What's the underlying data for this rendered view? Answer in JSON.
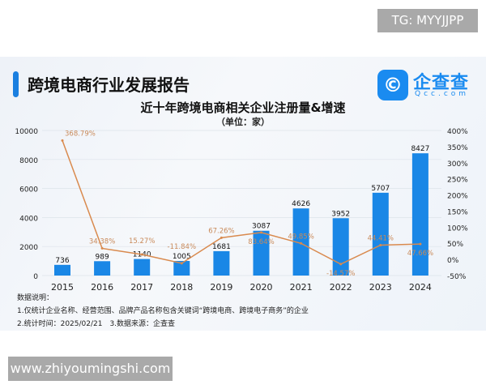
{
  "header": {
    "title": "跨境电商行业发展报告",
    "logo_glyph": "©",
    "logo_text": "企查查",
    "logo_sub": "Qcc.com"
  },
  "chart_data": {
    "type": "bar+line",
    "title": "近十年跨境电商相关企业注册量&增速",
    "subtitle": "（单位：家）",
    "categories": [
      "2015",
      "2016",
      "2017",
      "2018",
      "2019",
      "2020",
      "2021",
      "2022",
      "2023",
      "2024"
    ],
    "series": [
      {
        "name": "注册量",
        "type": "bar",
        "axis": "left",
        "color": "#1a87e6",
        "values": [
          736,
          989,
          1140,
          1005,
          1681,
          3087,
          4626,
          3952,
          5707,
          8427
        ]
      },
      {
        "name": "增速",
        "type": "line",
        "axis": "right",
        "color": "#d98a4e",
        "values": [
          368.79,
          34.38,
          15.27,
          -11.84,
          67.26,
          83.64,
          49.85,
          -14.57,
          44.41,
          47.66
        ],
        "labels": [
          "368.79%",
          "34.38%",
          "15.27%",
          "-11.84%",
          "67.26%",
          "83.64%",
          "49.85%",
          "-14.57%",
          "44.41%",
          "47.66%"
        ]
      }
    ],
    "y_left": {
      "range": [
        0,
        10000
      ],
      "ticks": [
        "0",
        "2000",
        "4000",
        "6000",
        "8000",
        "10000"
      ]
    },
    "y_right": {
      "range": [
        -50,
        400
      ],
      "ticks": [
        "-50%",
        "0%",
        "50%",
        "100%",
        "150%",
        "200%",
        "250%",
        "300%",
        "350%",
        "400%"
      ]
    },
    "grid": true
  },
  "notes": [
    "数据说明：",
    "1.仅统计企业名称、经营范围、品牌产品名称包含关键词“跨境电商、跨境电子商务”的企业",
    "2.统计时间：2025/02/21　3.数据来源：企查查"
  ],
  "watermarks": {
    "top": "TG: MYYJJPP",
    "bottom": "www.zhiyoumingshi.com"
  }
}
